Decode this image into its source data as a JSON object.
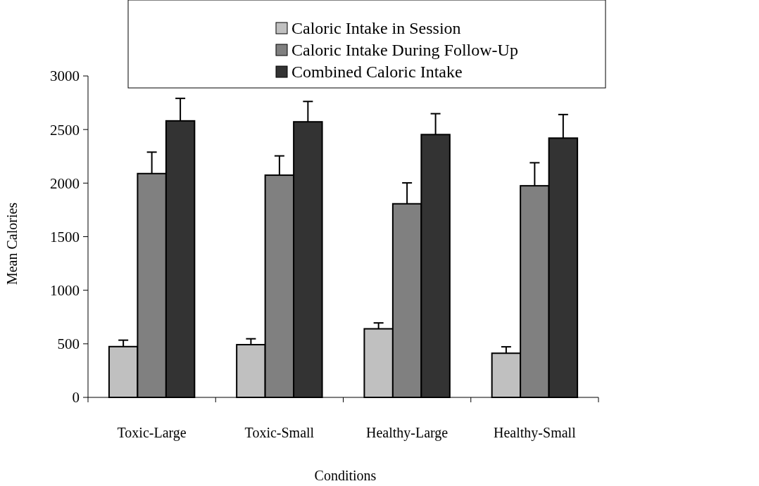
{
  "chart_data": {
    "type": "bar",
    "xlabel": "Conditions",
    "ylabel": "Mean Calories",
    "categories": [
      "Toxic-Large",
      "Toxic-Small",
      "Healthy-Large",
      "Healthy-Small"
    ],
    "series": [
      {
        "name": "Caloric Intake in Session",
        "color": "#c0c0c0",
        "values": [
          474,
          492,
          640,
          412
        ],
        "errors": [
          60,
          55,
          55,
          60
        ]
      },
      {
        "name": "Caloric Intake During Follow-Up",
        "color": "#808080",
        "values": [
          2089,
          2074,
          1807,
          1975
        ],
        "errors": [
          200,
          180,
          195,
          215
        ]
      },
      {
        "name": "Combined Caloric Intake",
        "color": "#333333",
        "values": [
          2581,
          2572,
          2453,
          2420
        ],
        "errors": [
          210,
          190,
          195,
          220
        ]
      }
    ],
    "ylim": [
      0,
      3000
    ],
    "yticks": [
      0,
      500,
      1000,
      1500,
      2000,
      2500,
      3000
    ],
    "legend": "top"
  }
}
